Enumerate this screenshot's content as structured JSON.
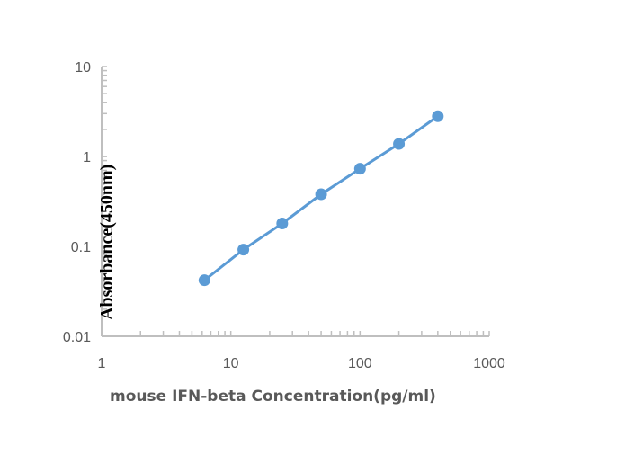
{
  "chart_data": {
    "type": "line",
    "title": "",
    "xlabel": "mouse IFN-beta Concentration(pg/ml)",
    "ylabel": "Absorbance(450nm)",
    "xscale": "log",
    "yscale": "log",
    "xlim": [
      1,
      1000
    ],
    "ylim": [
      0.01,
      10
    ],
    "xticks": [
      "1",
      "10",
      "100",
      "1000"
    ],
    "yticks": [
      "0.01",
      "0.1",
      "1",
      "10"
    ],
    "grid": false,
    "legend": "none",
    "series": [
      {
        "color": "#5b9bd5",
        "x": [
          6.25,
          12.5,
          25,
          50,
          100,
          200,
          400
        ],
        "y": [
          0.042,
          0.092,
          0.18,
          0.38,
          0.73,
          1.38,
          2.8
        ]
      }
    ]
  }
}
